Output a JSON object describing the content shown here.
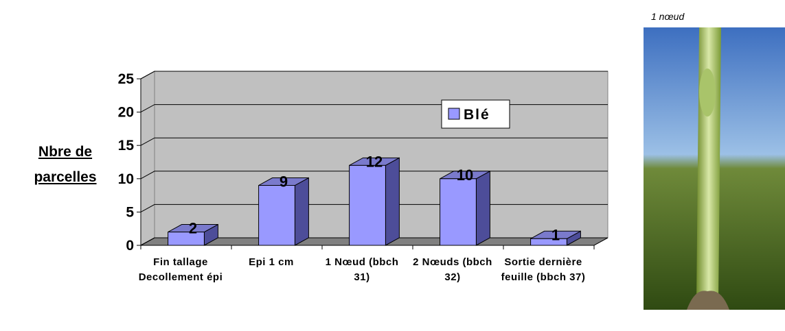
{
  "chart_data": {
    "type": "bar3d",
    "y_label": "Nbre de parcelles",
    "categories": [
      "Fin tallage Decollement épi",
      "Epi 1 cm",
      "1 Nœud (bbch 31)",
      "2 Nœuds (bbch 32)",
      "Sortie dernière feuille (bbch 37)"
    ],
    "series": [
      {
        "name": "Blé",
        "color": "#9999ff",
        "values": [
          2,
          9,
          12,
          10,
          1
        ]
      }
    ],
    "ylim": [
      0,
      25
    ],
    "yticks": [
      0,
      5,
      10,
      15,
      20,
      25
    ],
    "grid": true,
    "legend": "top-right"
  },
  "photo": {
    "caption": "1 nœud"
  }
}
